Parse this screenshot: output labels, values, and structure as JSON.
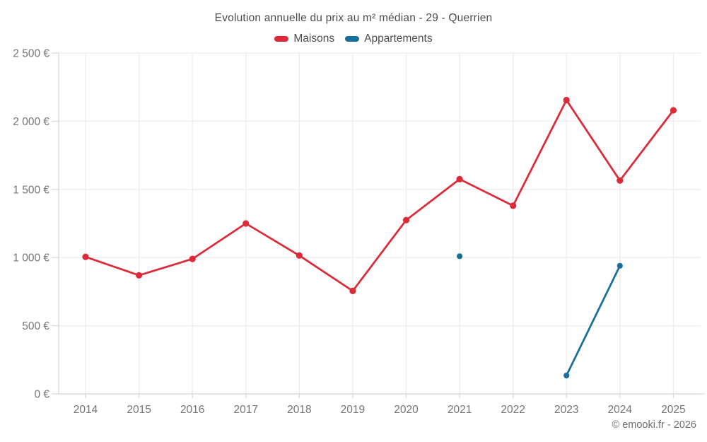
{
  "watermark": "© emooki.fr - 2026",
  "chart_data": {
    "type": "line",
    "title": "Evolution annuelle du prix au m² médian - 29 - Querrien",
    "xlabel": "",
    "ylabel": "",
    "categories": [
      "2014",
      "2015",
      "2016",
      "2017",
      "2018",
      "2019",
      "2020",
      "2021",
      "2022",
      "2023",
      "2024",
      "2025"
    ],
    "series": [
      {
        "name": "Maisons",
        "color": "#dc2a38",
        "values": [
          1005,
          870,
          990,
          1250,
          1015,
          755,
          1275,
          1575,
          1380,
          2155,
          1565,
          2080
        ]
      },
      {
        "name": "Appartements",
        "color": "#186f9e",
        "values": [
          null,
          null,
          null,
          null,
          null,
          null,
          null,
          1010,
          null,
          135,
          940,
          null
        ]
      }
    ],
    "ylim": [
      0,
      2500
    ],
    "y_ticks": [
      0,
      500,
      1000,
      1500,
      2000,
      2500
    ],
    "y_tick_labels": [
      "0 €",
      "500 €",
      "1 000 €",
      "1 500 €",
      "2 000 €",
      "2 500 €"
    ],
    "grid": true,
    "legend_position": "top",
    "currency_suffix": "€"
  }
}
